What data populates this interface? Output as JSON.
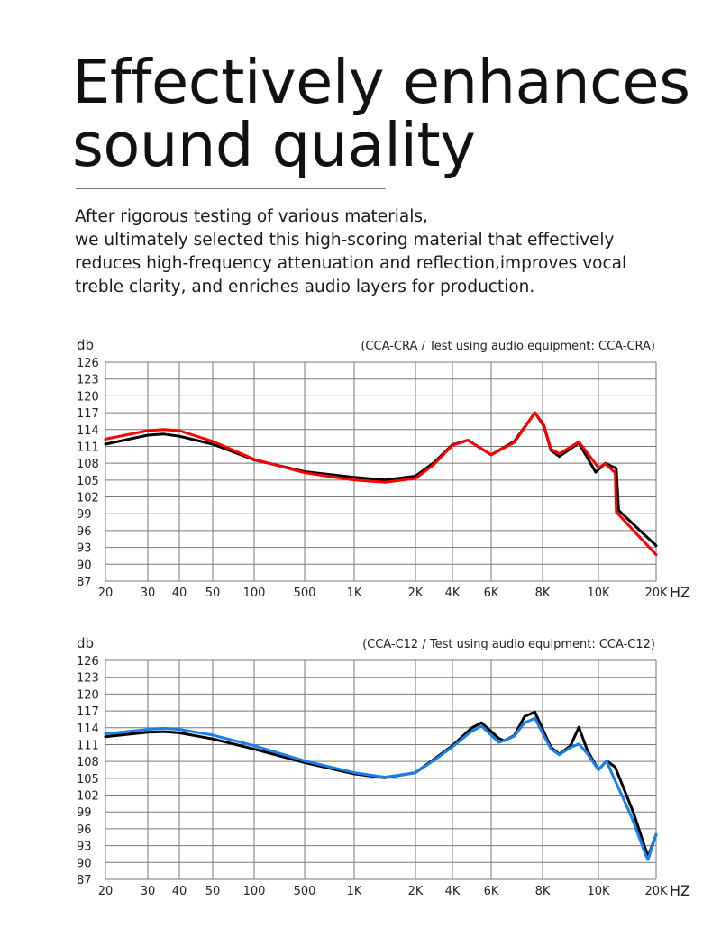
{
  "header": {
    "title_lines": [
      "Effectively enhances",
      "sound quality"
    ],
    "intro_lines": [
      "After rigorous testing of various materials,",
      "we ultimately selected this high-scoring material that effectively",
      "reduces high-frequency attenuation and reflection,improves vocal",
      "treble clarity, and enriches audio layers for production."
    ]
  },
  "chart_data": [
    {
      "type": "line",
      "title": "(CCA-CRA / Test using audio equipment: CCA-CRA)",
      "ylabel": "db",
      "xlabel": "HZ",
      "ylim": [
        87,
        126
      ],
      "yticks": [
        126,
        123,
        120,
        117,
        114,
        111,
        108,
        105,
        102,
        99,
        96,
        93,
        90,
        87
      ],
      "xtick_labels": [
        "20",
        "30",
        "40",
        "50",
        "100",
        "500",
        "1K",
        "2K",
        "4K",
        "6K",
        "8K",
        "10K",
        "20K"
      ],
      "xtick_values": [
        20,
        30,
        40,
        50,
        100,
        500,
        1000,
        2000,
        4000,
        6000,
        8000,
        10000,
        20000
      ],
      "grid": true,
      "series": [
        {
          "color": "#000000",
          "points": [
            [
              20,
              111.4
            ],
            [
              30,
              113.0
            ],
            [
              35,
              113.2
            ],
            [
              40,
              112.8
            ],
            [
              50,
              111.4
            ],
            [
              100,
              108.6
            ],
            [
              500,
              106.5
            ],
            [
              1000,
              105.5
            ],
            [
              1500,
              105.0
            ],
            [
              2000,
              105.7
            ],
            [
              3000,
              108.1
            ],
            [
              4000,
              111.3
            ],
            [
              4800,
              112.1
            ],
            [
              6000,
              109.5
            ],
            [
              6900,
              111.9
            ],
            [
              7700,
              117.0
            ],
            [
              8050,
              114.6
            ],
            [
              8300,
              110.3
            ],
            [
              8600,
              109.2
            ],
            [
              9300,
              111.6
            ],
            [
              9900,
              106.4
            ],
            [
              11200,
              108.0
            ],
            [
              13100,
              107.1
            ],
            [
              13500,
              99.6
            ],
            [
              20000,
              93.3
            ]
          ]
        },
        {
          "color": "#ff0000",
          "points": [
            [
              20,
              112.3
            ],
            [
              30,
              113.8
            ],
            [
              35,
              114.0
            ],
            [
              40,
              113.8
            ],
            [
              50,
              111.9
            ],
            [
              100,
              108.7
            ],
            [
              500,
              106.3
            ],
            [
              1000,
              105.0
            ],
            [
              1500,
              104.6
            ],
            [
              2000,
              105.3
            ],
            [
              3000,
              107.8
            ],
            [
              4000,
              111.2
            ],
            [
              4800,
              112.1
            ],
            [
              6000,
              109.5
            ],
            [
              6900,
              111.7
            ],
            [
              7700,
              117.0
            ],
            [
              8050,
              114.8
            ],
            [
              8300,
              110.5
            ],
            [
              8600,
              109.7
            ],
            [
              9300,
              111.8
            ],
            [
              10000,
              107.2
            ],
            [
              11200,
              107.9
            ],
            [
              12900,
              106.3
            ],
            [
              13100,
              99.3
            ],
            [
              20000,
              91.7
            ]
          ]
        }
      ]
    },
    {
      "type": "line",
      "title": "(CCA-C12 / Test using audio equipment: CCA-C12)",
      "ylabel": "db",
      "xlabel": "HZ",
      "ylim": [
        87,
        126
      ],
      "yticks": [
        126,
        123,
        120,
        117,
        114,
        111,
        108,
        105,
        102,
        99,
        96,
        93,
        90,
        87
      ],
      "xtick_labels": [
        "20",
        "30",
        "40",
        "50",
        "100",
        "500",
        "1K",
        "2K",
        "4K",
        "6K",
        "8K",
        "10K",
        "20K"
      ],
      "xtick_values": [
        20,
        30,
        40,
        50,
        100,
        500,
        1000,
        2000,
        4000,
        6000,
        8000,
        10000,
        20000
      ],
      "grid": true,
      "series": [
        {
          "color": "#000000",
          "points": [
            [
              20,
              112.4
            ],
            [
              30,
              113.2
            ],
            [
              35,
              113.3
            ],
            [
              40,
              113.1
            ],
            [
              50,
              112.0
            ],
            [
              100,
              110.2
            ],
            [
              500,
              107.8
            ],
            [
              1000,
              105.8
            ],
            [
              1500,
              105.1
            ],
            [
              2000,
              106.0
            ],
            [
              3000,
              108.4
            ],
            [
              4000,
              110.8
            ],
            [
              5000,
              114.0
            ],
            [
              5500,
              114.9
            ],
            [
              6300,
              112.1
            ],
            [
              6500,
              111.7
            ],
            [
              6900,
              112.6
            ],
            [
              7300,
              116.0
            ],
            [
              7700,
              116.8
            ],
            [
              8300,
              110.5
            ],
            [
              8600,
              109.3
            ],
            [
              9000,
              110.8
            ],
            [
              9300,
              114.1
            ],
            [
              9600,
              110.0
            ],
            [
              10000,
              106.5
            ],
            [
              11400,
              108.1
            ],
            [
              12900,
              107.0
            ],
            [
              16100,
              98.8
            ],
            [
              18600,
              91.0
            ],
            [
              20000,
              95.0
            ]
          ]
        },
        {
          "color": "#1a7fe8",
          "points": [
            [
              20,
              112.9
            ],
            [
              30,
              113.7
            ],
            [
              35,
              113.9
            ],
            [
              40,
              113.7
            ],
            [
              50,
              112.7
            ],
            [
              100,
              110.8
            ],
            [
              500,
              108.1
            ],
            [
              1000,
              106.0
            ],
            [
              1500,
              105.2
            ],
            [
              2000,
              106.0
            ],
            [
              3000,
              108.2
            ],
            [
              4000,
              110.6
            ],
            [
              5000,
              113.4
            ],
            [
              5500,
              114.3
            ],
            [
              6300,
              111.4
            ],
            [
              6500,
              111.7
            ],
            [
              6900,
              112.5
            ],
            [
              7300,
              114.9
            ],
            [
              7700,
              115.7
            ],
            [
              8300,
              110.2
            ],
            [
              8600,
              109.2
            ],
            [
              9000,
              110.5
            ],
            [
              9300,
              111.1
            ],
            [
              9600,
              109.4
            ],
            [
              10000,
              106.5
            ],
            [
              11400,
              108.1
            ],
            [
              12400,
              105.7
            ],
            [
              15700,
              98.2
            ],
            [
              18200,
              91.3
            ],
            [
              18600,
              90.5
            ],
            [
              20000,
              95.0
            ]
          ]
        }
      ]
    }
  ]
}
